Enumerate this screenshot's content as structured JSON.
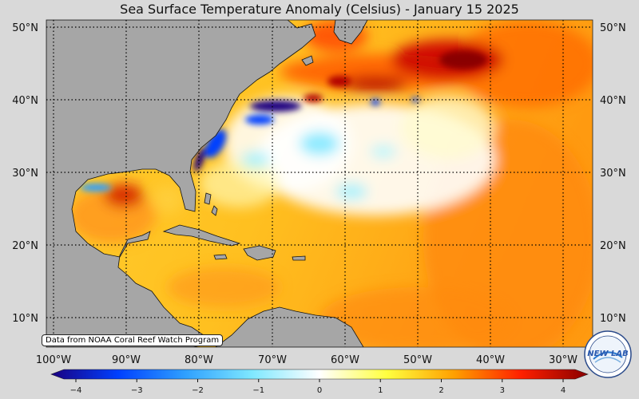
{
  "title": "Sea Surface Temperature Anomaly (Celsius) - January 15 2025",
  "credit": "Data from NOAA Coral Reef Watch Program",
  "logo_text": "NEW LAB",
  "lat_labels": [
    "50°N",
    "40°N",
    "30°N",
    "20°N",
    "10°N"
  ],
  "lon_labels": [
    "100°W",
    "90°W",
    "80°W",
    "70°W",
    "60°W",
    "50°W",
    "40°W",
    "30°W"
  ],
  "colorbar": {
    "ticks": [
      "−4",
      "−3",
      "−2",
      "−1",
      "0",
      "1",
      "2",
      "3",
      "4"
    ],
    "min": -4,
    "max": 4,
    "colors": [
      "#1a0080",
      "#0040ff",
      "#2fa0ff",
      "#7fe8ff",
      "#ffffff",
      "#ffff40",
      "#ffa000",
      "#ff2000",
      "#8a0000"
    ]
  },
  "colors": {
    "land": "#a6a6a6",
    "background": "#d9d9d9",
    "warm_base": "#ffd23c",
    "warm_strong": "#d80000",
    "cold": "#1a0080",
    "neutral": "#ffffff"
  }
}
